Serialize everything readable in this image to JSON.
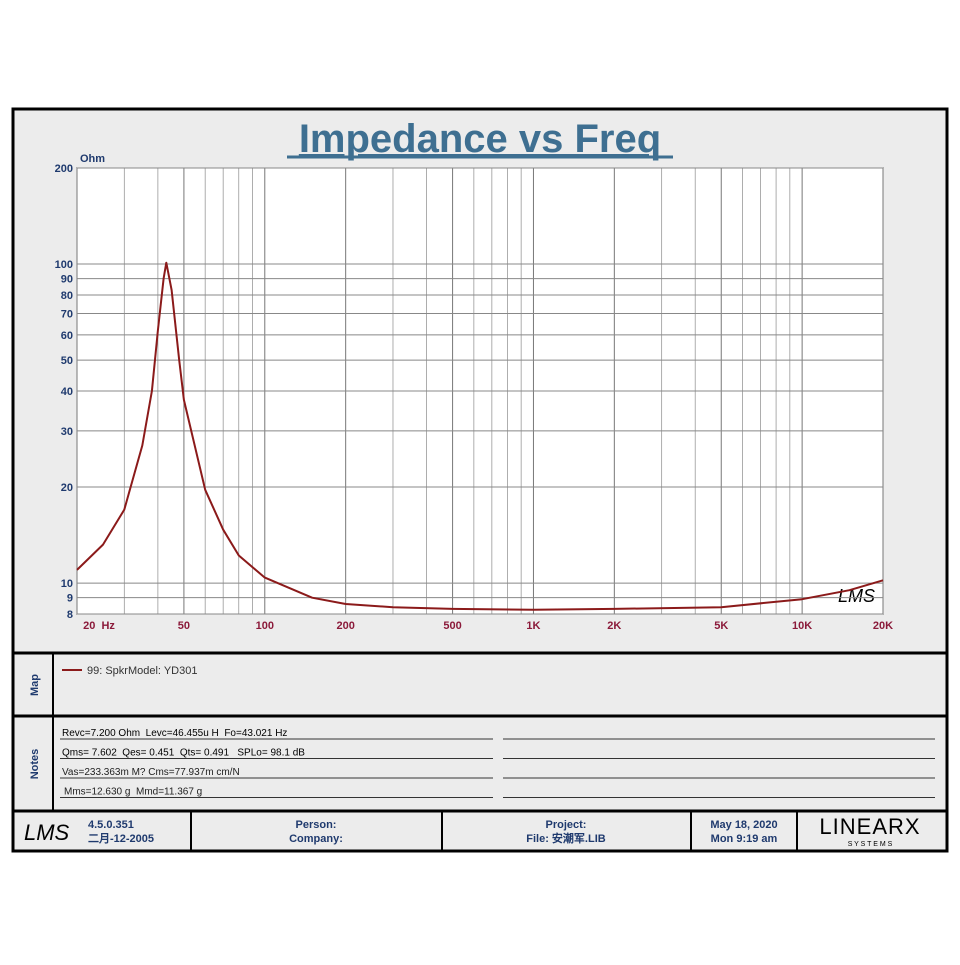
{
  "chart_data": {
    "type": "line",
    "title": "Impedance vs Freq",
    "y_unit": "Ohm",
    "x_log": true,
    "y_log": true,
    "grid": true,
    "x": [
      20,
      25,
      30,
      35,
      38,
      40,
      42,
      43,
      45,
      48,
      50,
      60,
      70,
      80,
      100,
      150,
      200,
      300,
      500,
      1000,
      2000,
      5000,
      10000,
      15000,
      20000
    ],
    "series": [
      {
        "name": "99: SpkrModel: YD301",
        "color": "#8b1a1a",
        "values": [
          11,
          13.2,
          17,
          27,
          40,
          62,
          90,
          101,
          83,
          50,
          37.5,
          19.6,
          14.7,
          12.2,
          10.4,
          9.0,
          8.6,
          8.4,
          8.3,
          8.25,
          8.3,
          8.4,
          8.9,
          9.5,
          10.2
        ]
      }
    ],
    "xlim": [
      20,
      20000
    ],
    "ylim": [
      8,
      200
    ],
    "xticks": [
      {
        "value": 20,
        "label": "20  Hz"
      },
      50,
      100,
      200,
      500,
      {
        "value": 1000,
        "label": "1K"
      },
      {
        "value": 2000,
        "label": "2K"
      },
      {
        "value": 5000,
        "label": "5K"
      },
      {
        "value": 10000,
        "label": "10K"
      },
      {
        "value": 20000,
        "label": "20K"
      }
    ],
    "x_minor_ticks": [
      30,
      40,
      60,
      70,
      80,
      90,
      300,
      400,
      600,
      700,
      800,
      900,
      3000,
      4000,
      6000,
      7000,
      8000,
      9000
    ],
    "yticks": [
      8,
      9,
      10,
      20,
      30,
      40,
      50,
      60,
      70,
      80,
      90,
      100,
      200
    ]
  },
  "panels": {
    "map": "Map",
    "notes": "Notes"
  },
  "notes": [
    "Revc=7.200 Ohm  Levc=46.455u H  Fo=43.021 Hz",
    "Qms= 7.602  Qes= 0.451  Qts= 0.491   SPLo= 98.1 dB",
    "Vas=233.363m M? Cms=77.937m cm/N",
    "Mms=12.630 g  Mmd=11.367 g"
  ],
  "footer": {
    "logo": "LMS",
    "version": "4.5.0.351",
    "date_built": "二月-12-2005",
    "person": "Person:",
    "company": "Company:",
    "project": "Project:",
    "file": "File: 安潮军.LIB",
    "date": "May 18, 2020",
    "time": "Mon  9:19 am",
    "brand": "LINEARX",
    "brand_sub": "S Y S T E M S"
  }
}
